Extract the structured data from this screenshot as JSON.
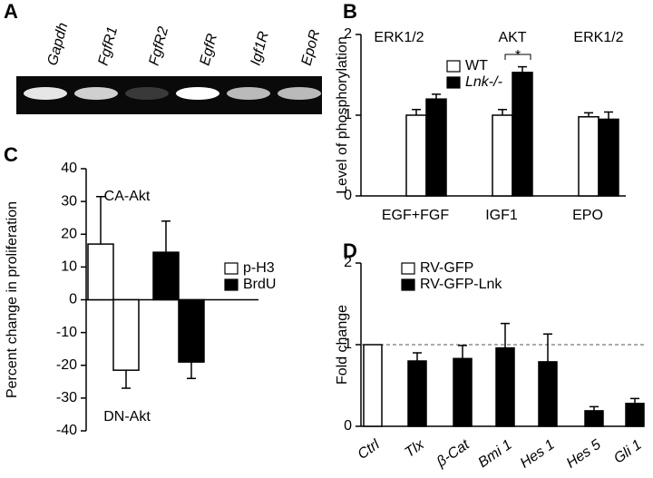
{
  "gel": {
    "label": "A",
    "lanes": [
      "Gapdh",
      "FgfR1",
      "FgfR2",
      "EgfR",
      "Igf1R",
      "EpoR"
    ]
  },
  "chart_data": [
    {
      "type": "bar",
      "label": "B",
      "ylabel": "Level of phosphorylation",
      "categories": [
        "EGF+FGF",
        "IGF1",
        "EPO"
      ],
      "annotations": [
        "ERK1/2",
        "AKT",
        "ERK1/2",
        "*"
      ],
      "series": [
        {
          "name": "WT",
          "color": "#ffffff",
          "values": [
            1.0,
            1.0,
            0.98
          ],
          "errors": [
            0.07,
            0.07,
            0.05
          ]
        },
        {
          "name": "Lnk-/-",
          "color": "#000000",
          "values": [
            1.2,
            1.53,
            0.95
          ],
          "errors": [
            0.06,
            0.07,
            0.09
          ]
        }
      ],
      "ylim": [
        0,
        2
      ],
      "yticks": [
        0,
        1,
        2
      ]
    },
    {
      "type": "bar",
      "label": "C",
      "ylabel": "Percent change in proliferation",
      "categories": [
        null,
        null,
        null,
        null
      ],
      "annotations": [
        "CA-Akt",
        "DN-Akt"
      ],
      "series": [
        {
          "name": "p-H3",
          "color": "#ffffff",
          "values": [
            17,
            -21.5,
            null,
            null
          ],
          "errors": [
            14.5,
            5.5,
            null,
            null
          ]
        },
        {
          "name": "BrdU",
          "color": "#000000",
          "values": [
            null,
            null,
            14.5,
            -19
          ],
          "errors": [
            null,
            null,
            9.5,
            5
          ]
        }
      ],
      "ylim": [
        -40,
        40
      ],
      "yticks": [
        -40,
        -30,
        -20,
        -10,
        0,
        10,
        20,
        30,
        40
      ]
    },
    {
      "type": "bar",
      "label": "D",
      "ylabel": "Fold change",
      "categories": [
        "Ctrl",
        "Tlx",
        "β-Cat",
        "Bmi 1",
        "Hes 1",
        "Hes 5",
        "Gli 1"
      ],
      "reference_line": 1,
      "series": [
        {
          "name": "RV-GFP",
          "color": "#ffffff",
          "values": [
            1,
            null,
            null,
            null,
            null,
            null,
            null
          ],
          "errors": [
            null,
            null,
            null,
            null,
            null,
            null,
            null
          ]
        },
        {
          "name": "RV-GFP-Lnk",
          "color": "#000000",
          "values": [
            null,
            0.8,
            0.83,
            0.96,
            0.79,
            0.19,
            0.28
          ],
          "errors": [
            null,
            0.1,
            0.16,
            0.3,
            0.34,
            0.05,
            0.06
          ]
        }
      ],
      "ylim": [
        0,
        2
      ],
      "yticks": [
        0,
        1,
        2
      ]
    }
  ]
}
